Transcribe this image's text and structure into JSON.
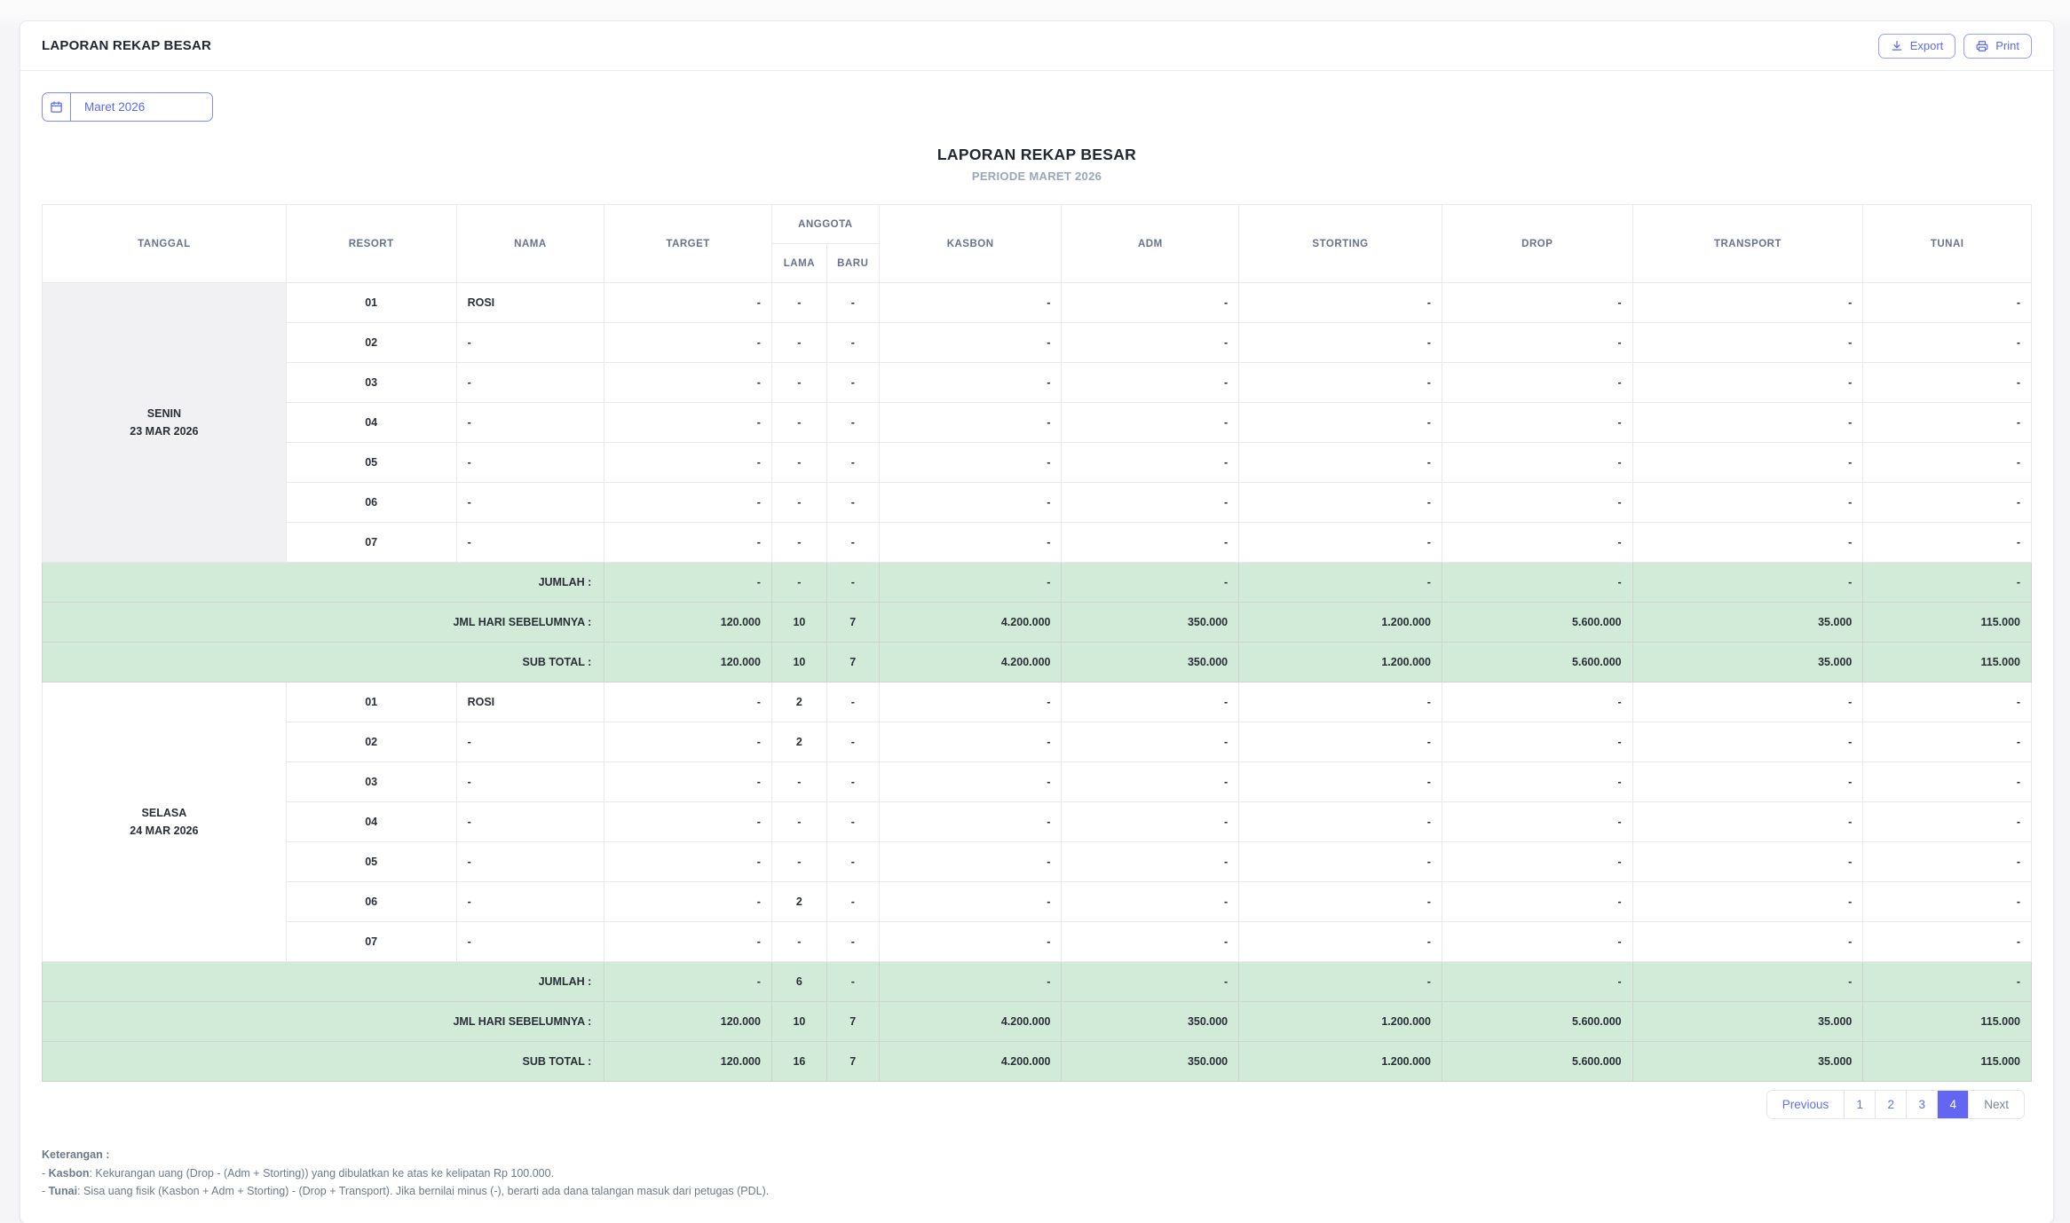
{
  "header": {
    "title": "LAPORAN REKAP BESAR",
    "export_label": "Export",
    "print_label": "Print"
  },
  "filters": {
    "month_label": "Maret 2026"
  },
  "report": {
    "title": "LAPORAN REKAP BESAR",
    "subtitle": "PERIODE MARET 2026"
  },
  "table": {
    "headers": {
      "tanggal": "TANGGAL",
      "resort": "RESORT",
      "nama": "NAMA",
      "target": "TARGET",
      "anggota": "ANGGOTA",
      "lama": "LAMA",
      "baru": "BARU",
      "kasbon": "KASBON",
      "adm": "ADM",
      "storting": "STORTING",
      "drop": "DROP",
      "transport": "TRANSPORT",
      "tunai": "TUNAI"
    },
    "groups": [
      {
        "day": "SENIN",
        "date": "23 MAR 2026",
        "rows": [
          {
            "resort": "01",
            "nama": "ROSI",
            "target": "-",
            "lama": "-",
            "baru": "-",
            "kasbon": "-",
            "adm": "-",
            "storting": "-",
            "drop": "-",
            "transport": "-",
            "tunai": "-"
          },
          {
            "resort": "02",
            "nama": "-",
            "target": "-",
            "lama": "-",
            "baru": "-",
            "kasbon": "-",
            "adm": "-",
            "storting": "-",
            "drop": "-",
            "transport": "-",
            "tunai": "-"
          },
          {
            "resort": "03",
            "nama": "-",
            "target": "-",
            "lama": "-",
            "baru": "-",
            "kasbon": "-",
            "adm": "-",
            "storting": "-",
            "drop": "-",
            "transport": "-",
            "tunai": "-"
          },
          {
            "resort": "04",
            "nama": "-",
            "target": "-",
            "lama": "-",
            "baru": "-",
            "kasbon": "-",
            "adm": "-",
            "storting": "-",
            "drop": "-",
            "transport": "-",
            "tunai": "-"
          },
          {
            "resort": "05",
            "nama": "-",
            "target": "-",
            "lama": "-",
            "baru": "-",
            "kasbon": "-",
            "adm": "-",
            "storting": "-",
            "drop": "-",
            "transport": "-",
            "tunai": "-"
          },
          {
            "resort": "06",
            "nama": "-",
            "target": "-",
            "lama": "-",
            "baru": "-",
            "kasbon": "-",
            "adm": "-",
            "storting": "-",
            "drop": "-",
            "transport": "-",
            "tunai": "-"
          },
          {
            "resort": "07",
            "nama": "-",
            "target": "-",
            "lama": "-",
            "baru": "-",
            "kasbon": "-",
            "adm": "-",
            "storting": "-",
            "drop": "-",
            "transport": "-",
            "tunai": "-"
          }
        ],
        "summaries": [
          {
            "label": "JUMLAH :",
            "values": {
              "target": "-",
              "lama": "-",
              "baru": "-",
              "kasbon": "-",
              "adm": "-",
              "storting": "-",
              "drop": "-",
              "transport": "-",
              "tunai": "-"
            }
          },
          {
            "label": "JML HARI SEBELUMNYA :",
            "values": {
              "target": "120.000",
              "lama": "10",
              "baru": "7",
              "kasbon": "4.200.000",
              "adm": "350.000",
              "storting": "1.200.000",
              "drop": "5.600.000",
              "transport": "35.000",
              "tunai": "115.000"
            }
          },
          {
            "label": "SUB TOTAL :",
            "values": {
              "target": "120.000",
              "lama": "10",
              "baru": "7",
              "kasbon": "4.200.000",
              "adm": "350.000",
              "storting": "1.200.000",
              "drop": "5.600.000",
              "transport": "35.000",
              "tunai": "115.000"
            }
          }
        ]
      },
      {
        "day": "SELASA",
        "date": "24 MAR 2026",
        "rows": [
          {
            "resort": "01",
            "nama": "ROSI",
            "target": "-",
            "lama": "2",
            "baru": "-",
            "kasbon": "-",
            "adm": "-",
            "storting": "-",
            "drop": "-",
            "transport": "-",
            "tunai": "-"
          },
          {
            "resort": "02",
            "nama": "-",
            "target": "-",
            "lama": "2",
            "baru": "-",
            "kasbon": "-",
            "adm": "-",
            "storting": "-",
            "drop": "-",
            "transport": "-",
            "tunai": "-"
          },
          {
            "resort": "03",
            "nama": "-",
            "target": "-",
            "lama": "-",
            "baru": "-",
            "kasbon": "-",
            "adm": "-",
            "storting": "-",
            "drop": "-",
            "transport": "-",
            "tunai": "-"
          },
          {
            "resort": "04",
            "nama": "-",
            "target": "-",
            "lama": "-",
            "baru": "-",
            "kasbon": "-",
            "adm": "-",
            "storting": "-",
            "drop": "-",
            "transport": "-",
            "tunai": "-"
          },
          {
            "resort": "05",
            "nama": "-",
            "target": "-",
            "lama": "-",
            "baru": "-",
            "kasbon": "-",
            "adm": "-",
            "storting": "-",
            "drop": "-",
            "transport": "-",
            "tunai": "-"
          },
          {
            "resort": "06",
            "nama": "-",
            "target": "-",
            "lama": "2",
            "baru": "-",
            "kasbon": "-",
            "adm": "-",
            "storting": "-",
            "drop": "-",
            "transport": "-",
            "tunai": "-"
          },
          {
            "resort": "07",
            "nama": "-",
            "target": "-",
            "lama": "-",
            "baru": "-",
            "kasbon": "-",
            "adm": "-",
            "storting": "-",
            "drop": "-",
            "transport": "-",
            "tunai": "-"
          }
        ],
        "summaries": [
          {
            "label": "JUMLAH :",
            "values": {
              "target": "-",
              "lama": "6",
              "baru": "-",
              "kasbon": "-",
              "adm": "-",
              "storting": "-",
              "drop": "-",
              "transport": "-",
              "tunai": "-"
            }
          },
          {
            "label": "JML HARI SEBELUMNYA :",
            "values": {
              "target": "120.000",
              "lama": "10",
              "baru": "7",
              "kasbon": "4.200.000",
              "adm": "350.000",
              "storting": "1.200.000",
              "drop": "5.600.000",
              "transport": "35.000",
              "tunai": "115.000"
            }
          },
          {
            "label": "SUB TOTAL :",
            "values": {
              "target": "120.000",
              "lama": "16",
              "baru": "7",
              "kasbon": "4.200.000",
              "adm": "350.000",
              "storting": "1.200.000",
              "drop": "5.600.000",
              "transport": "35.000",
              "tunai": "115.000"
            }
          }
        ]
      }
    ]
  },
  "pagination": {
    "previous": "Previous",
    "pages": [
      "1",
      "2",
      "3",
      "4"
    ],
    "active": "4",
    "next": "Next"
  },
  "notes": {
    "heading": "Keterangan :",
    "items": [
      {
        "term": "Kasbon",
        "text": "Kekurangan uang (Drop - (Adm + Storting)) yang dibulatkan ke atas ke kelipatan Rp 100.000."
      },
      {
        "term": "Tunai",
        "text": "Sisa uang fisik (Kasbon + Adm + Storting) - (Drop + Transport). Jika bernilai minus (-), berarti ada dana talangan masuk dari petugas (PDL)."
      }
    ]
  },
  "colors": {
    "accent": "#6366f1",
    "summary_row": "#d2ebd8",
    "stripe": "#f1f1f3",
    "header_text": "#68738a"
  }
}
